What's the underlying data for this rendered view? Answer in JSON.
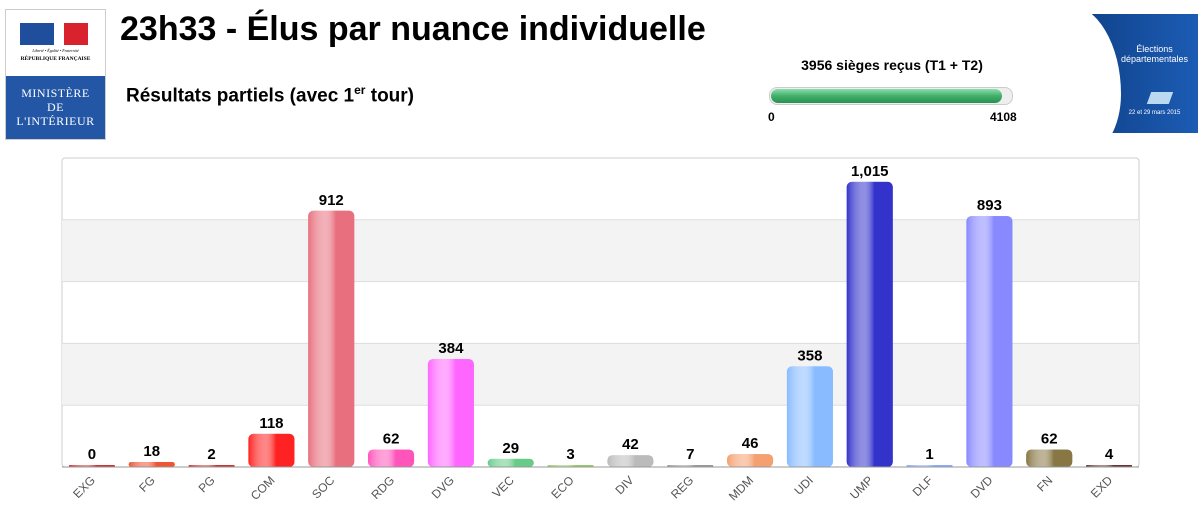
{
  "header": {
    "title": "23h33 - Élus par nuance individuelle",
    "subtitle": "Résultats partiels (avec 1",
    "subtitle_sup": "er",
    "subtitle_end": " tour)"
  },
  "logo": {
    "motto": "Liberté • Égalité • Fraternité",
    "republic": "RÉPUBLIQUE FRANÇAISE",
    "ministry_lines": [
      "MINISTÈRE",
      "DE",
      "L'INTÉRIEUR"
    ]
  },
  "progress": {
    "label": "3956 sièges reçus (T1 + T2)",
    "value": 3956,
    "min": "0",
    "max": "4108",
    "color": "#3fb06a"
  },
  "banner": {
    "title": "Élections départementales",
    "dates": "22 et 29 mars 2015"
  },
  "chart_data": {
    "type": "bar",
    "title": "Élus par nuance individuelle",
    "categories": [
      "EXG",
      "FG",
      "PG",
      "COM",
      "SOC",
      "RDG",
      "DVG",
      "VEC",
      "ECO",
      "DIV",
      "REG",
      "MDM",
      "UDI",
      "UMP",
      "DLF",
      "DVD",
      "FN",
      "EXD"
    ],
    "values": [
      0,
      18,
      2,
      118,
      912,
      62,
      384,
      29,
      3,
      42,
      7,
      46,
      358,
      1015,
      1,
      893,
      62,
      4
    ],
    "labels": [
      "0",
      "18",
      "2",
      "118",
      "912",
      "62",
      "384",
      "29",
      "3",
      "42",
      "7",
      "46",
      "358",
      "1,015",
      "1",
      "893",
      "62",
      "4"
    ],
    "colors": [
      "#cc3333",
      "#ee5533",
      "#cc3333",
      "#ff2222",
      "#e8707e",
      "#ff55bb",
      "#ff66ff",
      "#66cc88",
      "#99cc66",
      "#bbbbbb",
      "#999999",
      "#f5a070",
      "#88bbff",
      "#3333cc",
      "#88aaff",
      "#8888ff",
      "#887744",
      "#663333"
    ],
    "ylim": [
      0,
      1100
    ],
    "grid": true,
    "xlabel": "",
    "ylabel": ""
  }
}
